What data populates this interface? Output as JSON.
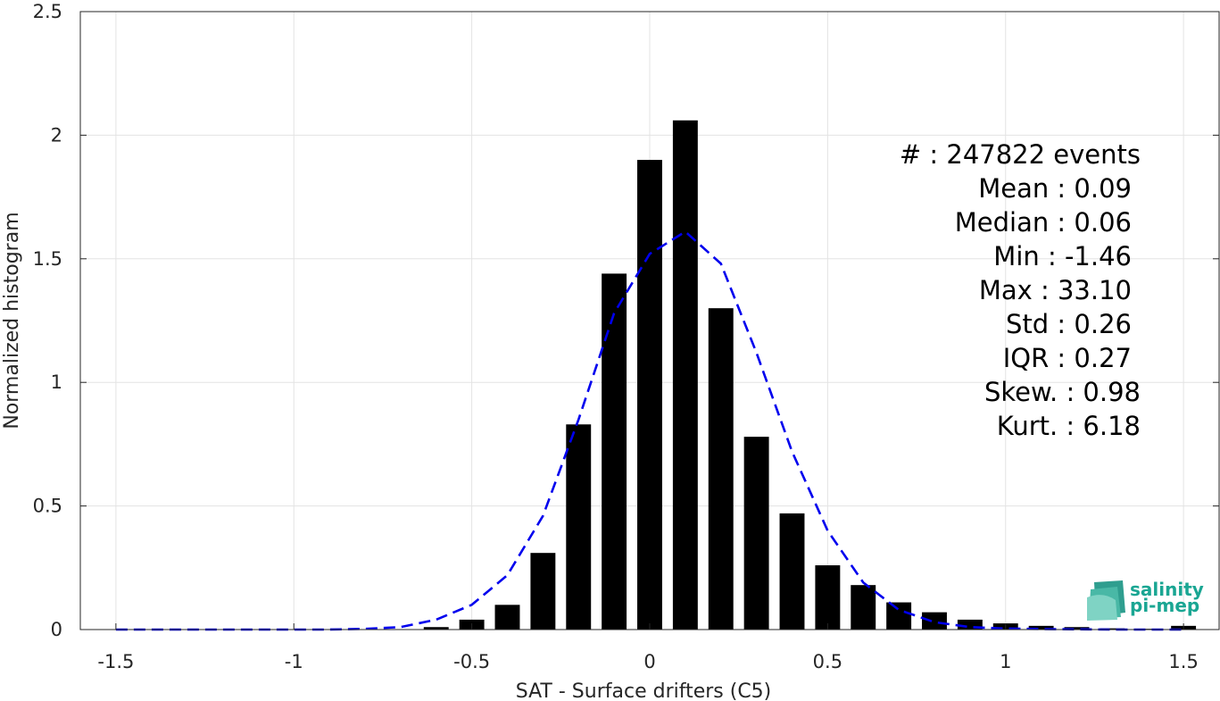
{
  "chart_data": {
    "type": "bar",
    "xlabel": "SAT - Surface drifters (C5)",
    "ylabel": "Normalized histogram",
    "xlim": [
      -1.6,
      1.6
    ],
    "ylim": [
      0,
      2.5
    ],
    "xticks": [
      -1.5,
      -1,
      -0.5,
      0,
      0.5,
      1,
      1.5
    ],
    "xtick_labels": [
      "-1.5",
      "-1",
      "-0.5",
      "0",
      "0.5",
      "1",
      "1.5"
    ],
    "yticks": [
      0,
      0.5,
      1,
      1.5,
      2,
      2.5
    ],
    "ytick_labels": [
      "0",
      "0.5",
      "1",
      "1.5",
      "2",
      "2.5"
    ],
    "grid": true,
    "bar_width": 0.07,
    "bars": {
      "x": [
        -0.6,
        -0.5,
        -0.4,
        -0.3,
        -0.2,
        -0.1,
        0.0,
        0.1,
        0.2,
        0.3,
        0.4,
        0.5,
        0.6,
        0.7,
        0.8,
        0.9,
        1.0,
        1.1,
        1.2,
        1.3,
        1.4,
        1.5
      ],
      "values": [
        0.01,
        0.04,
        0.1,
        0.31,
        0.83,
        1.44,
        1.9,
        2.06,
        1.3,
        0.78,
        0.47,
        0.26,
        0.18,
        0.11,
        0.07,
        0.04,
        0.025,
        0.015,
        0.01,
        0.005,
        0.003,
        0.015
      ],
      "color": "#000000"
    },
    "fit_curve": {
      "style": "dashed",
      "color": "#0000ee",
      "x": [
        -1.5,
        -1.3,
        -1.1,
        -0.9,
        -0.8,
        -0.7,
        -0.6,
        -0.5,
        -0.4,
        -0.3,
        -0.2,
        -0.1,
        0.0,
        0.1,
        0.2,
        0.3,
        0.4,
        0.5,
        0.6,
        0.7,
        0.8,
        0.9,
        1.0,
        1.1,
        1.2,
        1.3,
        1.4,
        1.5
      ],
      "y": [
        0.0,
        0.0,
        0.0,
        0.0,
        0.003,
        0.01,
        0.04,
        0.1,
        0.22,
        0.46,
        0.85,
        1.28,
        1.52,
        1.61,
        1.48,
        1.12,
        0.72,
        0.4,
        0.19,
        0.08,
        0.03,
        0.01,
        0.004,
        0.002,
        0.001,
        0.0,
        0.0,
        0.0
      ]
    },
    "stats": [
      {
        "label": "#  : 247822 events"
      },
      {
        "label": "Mean : 0.09"
      },
      {
        "label": "Median : 0.06"
      },
      {
        "label": "Min : -1.46"
      },
      {
        "label": "Max : 33.10"
      },
      {
        "label": "Std : 0.26"
      },
      {
        "label": "IQR : 0.27"
      },
      {
        "label": "Skew. : 0.98"
      },
      {
        "label": "Kurt. : 6.18"
      }
    ]
  },
  "logo": {
    "line1": "salinity",
    "line2": "pi-mep",
    "color": "#1aa693"
  }
}
